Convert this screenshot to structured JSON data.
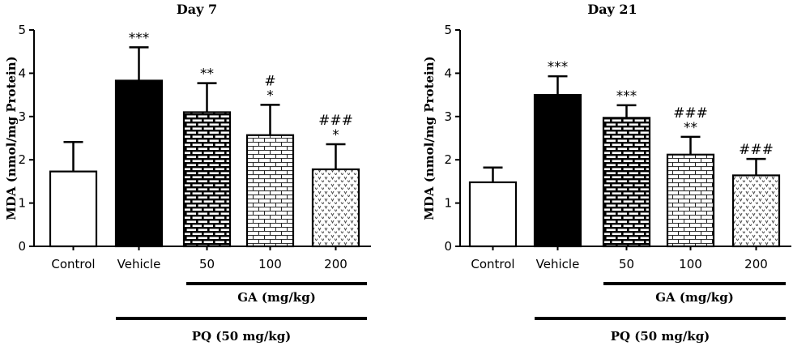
{
  "chart_data": [
    {
      "type": "bar",
      "title": "Day 7",
      "ylabel": "MDA (nmol/mg Protein)",
      "ylim": [
        0,
        5
      ],
      "yticks": [
        "0",
        "1",
        "2",
        "3",
        "4",
        "5"
      ],
      "categories": [
        "Control",
        "Vehicle",
        "50",
        "100",
        "200"
      ],
      "values": [
        1.73,
        3.83,
        3.1,
        2.57,
        1.78
      ],
      "errors": [
        0.68,
        0.77,
        0.67,
        0.7,
        0.58
      ],
      "fills": [
        "white",
        "black",
        "brick-dark",
        "brick-light",
        "vee"
      ],
      "annotations": [
        [],
        [
          "***"
        ],
        [
          "**"
        ],
        [
          "#",
          "*"
        ],
        [
          "###",
          "*"
        ]
      ],
      "group_labels": {
        "ga": "GA (mg/kg)",
        "pq": "PQ (50 mg/kg)"
      }
    },
    {
      "type": "bar",
      "title": "Day 21",
      "ylabel": "MDA (nmol/mg Protein)",
      "ylim": [
        0,
        5
      ],
      "yticks": [
        "0",
        "1",
        "2",
        "3",
        "4",
        "5"
      ],
      "categories": [
        "Control",
        "Vehicle",
        "50",
        "100",
        "200"
      ],
      "values": [
        1.48,
        3.5,
        2.97,
        2.12,
        1.64
      ],
      "errors": [
        0.34,
        0.43,
        0.29,
        0.41,
        0.38
      ],
      "fills": [
        "white",
        "black",
        "brick-dark",
        "brick-light",
        "vee"
      ],
      "annotations": [
        [],
        [
          "***"
        ],
        [
          "***"
        ],
        [
          "###",
          "**"
        ],
        [
          "###"
        ]
      ],
      "group_labels": {
        "ga": "GA (mg/kg)",
        "pq": "PQ (50 mg/kg)"
      }
    }
  ]
}
